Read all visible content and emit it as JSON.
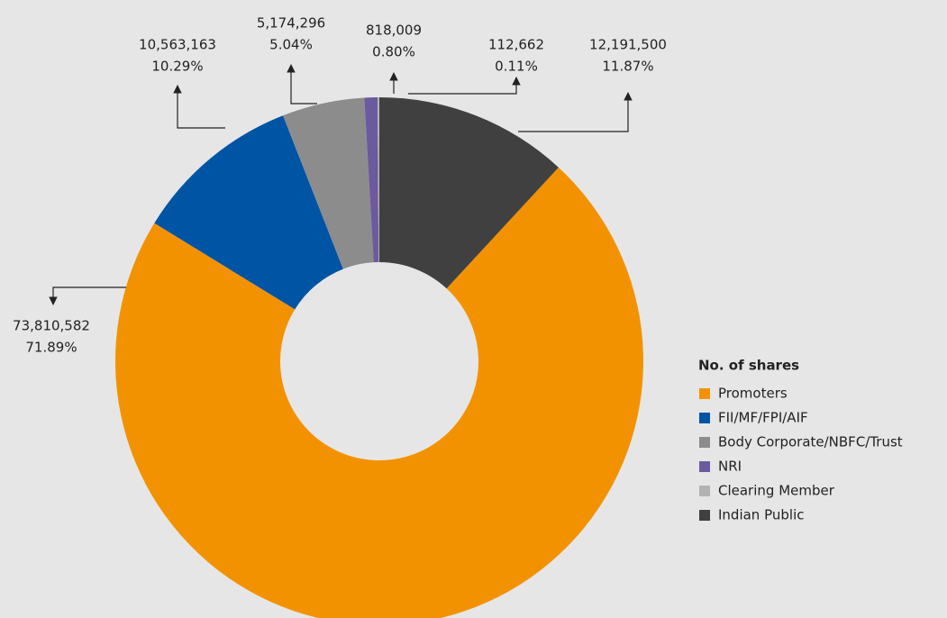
{
  "chart_data": {
    "type": "donut",
    "legend_title": "No. of shares",
    "legend": "right",
    "categories": [
      "Promoters",
      "FII/MF/FPI/AIF",
      "Body Corporate/NBFC/Trust",
      "NRI",
      "Clearing Member",
      "Indian Public"
    ],
    "values": [
      73810582,
      10563163,
      5174296,
      818009,
      112662,
      12191500
    ],
    "value_labels": [
      "73,810,582",
      "10,563,163",
      "5,174,296",
      "818,009",
      "112,662",
      "12,191,500"
    ],
    "percent_labels": [
      "71.89%",
      "10.29%",
      "5.04%",
      "0.80%",
      "0.11%",
      "11.87%"
    ],
    "colors": [
      "#f39200",
      "#0054a4",
      "#8c8c8c",
      "#6b5a9e",
      "#b3b3b3",
      "#404040"
    ]
  }
}
